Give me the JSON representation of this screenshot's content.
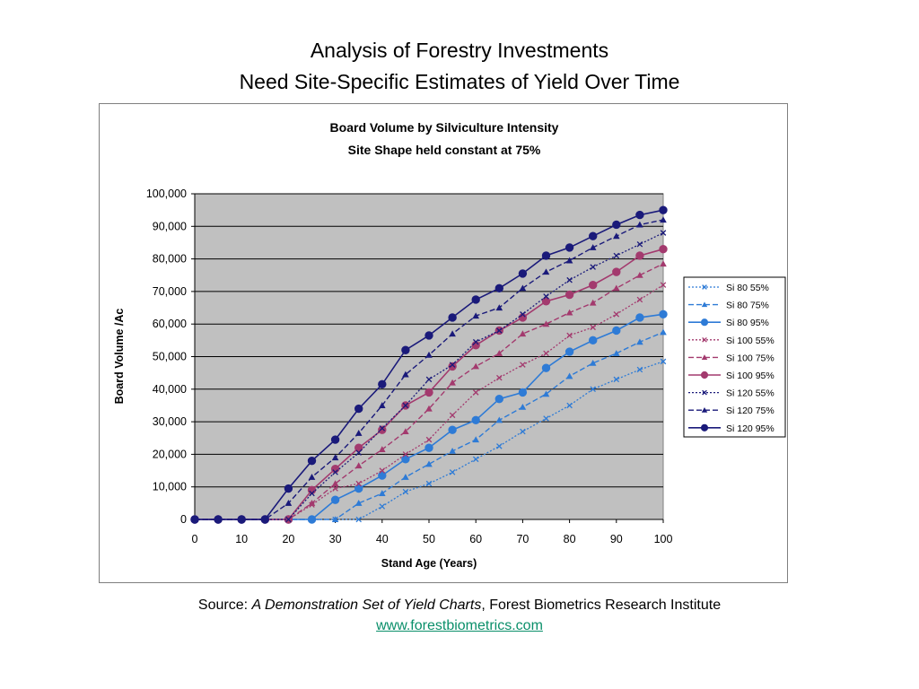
{
  "slide": {
    "title_line1": "Analysis of Forestry Investments",
    "title_line2": "Need Site-Specific Estimates of Yield Over Time",
    "source_prefix": "Source: ",
    "source_title": "A Demonstration Set of Yield Charts",
    "source_suffix": ", Forest Biometrics Research Institute",
    "source_url": "www.forestbiometrics.com"
  },
  "colors": {
    "plot_background": "#c0c0c0",
    "si80": "#2e7bd6",
    "si100": "#a33a6e",
    "si120": "#1a1a7a"
  },
  "chart_data": {
    "type": "line",
    "title": "Board Volume by Silviculture Intensity",
    "subtitle": "Site Shape held constant at 75%",
    "xlabel": "Stand Age (Years)",
    "ylabel": "Board Volume /Ac",
    "xlim": [
      0,
      100
    ],
    "ylim": [
      0,
      100000
    ],
    "x_ticks": [
      "0",
      "10",
      "20",
      "30",
      "40",
      "50",
      "60",
      "70",
      "80",
      "90",
      "100"
    ],
    "y_ticks": [
      "0",
      "10,000",
      "20,000",
      "30,000",
      "40,000",
      "50,000",
      "60,000",
      "70,000",
      "80,000",
      "90,000",
      "100,000"
    ],
    "grid": "horizontal",
    "legend_position": "right",
    "x": [
      0,
      5,
      10,
      15,
      20,
      25,
      30,
      35,
      40,
      45,
      50,
      55,
      60,
      65,
      70,
      75,
      80,
      85,
      90,
      95,
      100
    ],
    "series": [
      {
        "name": "Si 80 55%",
        "color": "#2e7bd6",
        "dash": "dotted",
        "marker": "x",
        "values": [
          0,
          0,
          0,
          0,
          0,
          0,
          0,
          0,
          4000,
          8500,
          11000,
          14500,
          18500,
          22500,
          27000,
          31000,
          35000,
          40000,
          43000,
          46000,
          48500
        ]
      },
      {
        "name": "Si 80 75%",
        "color": "#2e7bd6",
        "dash": "dashed",
        "marker": "triangle",
        "values": [
          0,
          0,
          0,
          0,
          0,
          0,
          0,
          5000,
          8000,
          13000,
          17000,
          21000,
          24500,
          30500,
          34500,
          38500,
          44000,
          48000,
          51000,
          54500,
          57500
        ]
      },
      {
        "name": "Si 80 95%",
        "color": "#2e7bd6",
        "dash": "solid",
        "marker": "circle",
        "values": [
          0,
          0,
          0,
          0,
          0,
          0,
          6000,
          9500,
          13500,
          18500,
          22000,
          27500,
          30500,
          37000,
          39000,
          46500,
          51500,
          55000,
          58000,
          62000,
          63000
        ]
      },
      {
        "name": "Si 100 55%",
        "color": "#a33a6e",
        "dash": "dotted",
        "marker": "x",
        "values": [
          0,
          0,
          0,
          0,
          0,
          4500,
          9500,
          11000,
          15000,
          20000,
          24500,
          32000,
          39000,
          43500,
          47500,
          51000,
          56500,
          59000,
          63000,
          67500,
          72000
        ]
      },
      {
        "name": "Si 100 75%",
        "color": "#a33a6e",
        "dash": "dashed",
        "marker": "triangle",
        "values": [
          0,
          0,
          0,
          0,
          0,
          5000,
          11000,
          16500,
          21500,
          27000,
          34000,
          42000,
          47000,
          51000,
          57000,
          60000,
          63500,
          66500,
          71000,
          75000,
          78500
        ]
      },
      {
        "name": "Si 100 95%",
        "color": "#a33a6e",
        "dash": "solid",
        "marker": "circle",
        "values": [
          0,
          0,
          0,
          0,
          0,
          9000,
          15500,
          22000,
          27500,
          35000,
          39000,
          47000,
          53500,
          58000,
          62000,
          67000,
          69000,
          72000,
          76000,
          81000,
          83000
        ]
      },
      {
        "name": "Si 120 55%",
        "color": "#1a1a7a",
        "dash": "dotted",
        "marker": "x",
        "values": [
          0,
          0,
          0,
          0,
          0,
          8000,
          14500,
          20500,
          28000,
          35000,
          43000,
          47500,
          54500,
          58000,
          63000,
          68500,
          73500,
          77500,
          81000,
          84500,
          88000
        ]
      },
      {
        "name": "Si 120 75%",
        "color": "#1a1a7a",
        "dash": "dashed",
        "marker": "triangle",
        "values": [
          0,
          0,
          0,
          0,
          5000,
          13000,
          19000,
          26500,
          35000,
          44500,
          50500,
          57000,
          62500,
          65000,
          71000,
          76000,
          79500,
          83500,
          87000,
          90500,
          92000
        ]
      },
      {
        "name": "Si 120 95%",
        "color": "#1a1a7a",
        "dash": "solid",
        "marker": "circle",
        "values": [
          0,
          0,
          0,
          0,
          9500,
          18000,
          24500,
          34000,
          41500,
          52000,
          56500,
          62000,
          67500,
          71000,
          75500,
          81000,
          83500,
          87000,
          90500,
          93500,
          95000
        ]
      }
    ]
  }
}
